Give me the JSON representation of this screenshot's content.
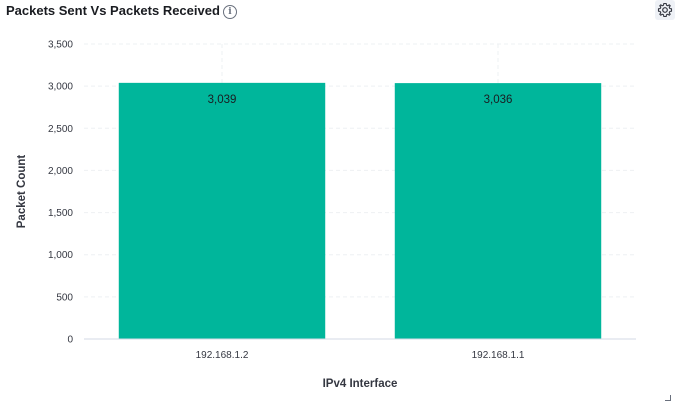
{
  "panel": {
    "title": "Packets Sent Vs Packets Received",
    "info_icon": "info-icon",
    "settings_icon": "gear-icon"
  },
  "chart_data": {
    "type": "bar",
    "categories": [
      "192.168.1.2",
      "192.168.1.1"
    ],
    "values": [
      3039,
      3036
    ],
    "data_labels": [
      "3,039",
      "3,036"
    ],
    "xlabel": "IPv4 Interface",
    "ylabel": "Packet Count",
    "ylim": [
      0,
      3500
    ],
    "yticks": [
      0,
      500,
      1000,
      1500,
      2000,
      2500,
      3000,
      3500
    ],
    "ytick_labels": [
      "0",
      "500",
      "1,000",
      "1,500",
      "2,000",
      "2,500",
      "3,000",
      "3,500"
    ],
    "grid": true,
    "bar_color": "#00b69b",
    "grid_color": "#eef0f3"
  }
}
